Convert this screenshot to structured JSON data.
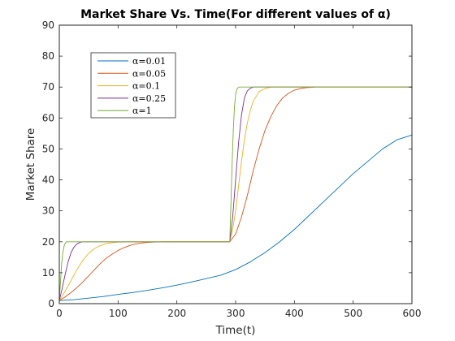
{
  "chart_data": {
    "type": "line",
    "title": "Market Share Vs. Time(For different values of α)",
    "xlabel": "Time(t)",
    "ylabel": "Market Share",
    "xlim": [
      0,
      600
    ],
    "ylim": [
      0,
      90
    ],
    "xticks": [
      0,
      100,
      200,
      300,
      400,
      500,
      600
    ],
    "yticks": [
      0,
      10,
      20,
      30,
      40,
      50,
      60,
      70,
      80,
      90
    ],
    "grid": false,
    "legend_position": "top-left",
    "series": [
      {
        "name": "α=0.01",
        "color": "#0072BD",
        "x": [
          0,
          25,
          50,
          75,
          100,
          125,
          150,
          175,
          200,
          225,
          250,
          275,
          300,
          325,
          350,
          375,
          400,
          425,
          450,
          475,
          500,
          525,
          550,
          575,
          600
        ],
        "y": [
          1,
          1.3,
          1.8,
          2.3,
          3,
          3.6,
          4.3,
          5.1,
          6,
          7,
          8.1,
          9.2,
          11,
          13.5,
          16.5,
          20,
          24,
          28.5,
          33,
          37.5,
          42,
          46,
          50,
          53,
          54.5
        ]
      },
      {
        "name": "α=0.05",
        "color": "#D95319",
        "x": [
          0,
          10,
          20,
          30,
          40,
          50,
          60,
          70,
          80,
          90,
          100,
          110,
          120,
          130,
          140,
          150,
          160,
          175,
          200,
          250,
          290,
          300,
          310,
          320,
          330,
          340,
          350,
          360,
          370,
          380,
          390,
          400,
          410,
          420,
          435
        ],
        "y": [
          1,
          2.2,
          3.6,
          5.2,
          7,
          9,
          11,
          13,
          14.7,
          16,
          17.2,
          18.1,
          18.8,
          19.3,
          19.6,
          19.8,
          19.9,
          20,
          20,
          20,
          20,
          22.5,
          28,
          35,
          43,
          50,
          56,
          60.5,
          64,
          66.5,
          68,
          69,
          69.5,
          69.8,
          70
        ]
      },
      {
        "name": "α=0.1",
        "color": "#EDB120",
        "x": [
          0,
          10,
          20,
          30,
          40,
          50,
          60,
          70,
          80,
          90,
          100,
          120,
          200,
          290,
          295,
          300,
          305,
          310,
          315,
          320,
          325,
          330,
          340,
          350,
          360,
          600
        ],
        "y": [
          1,
          4,
          7.5,
          11,
          14,
          16.3,
          17.8,
          18.8,
          19.4,
          19.7,
          19.9,
          20,
          20,
          20,
          24,
          30,
          38,
          46,
          53,
          58.5,
          62.5,
          65.5,
          68.5,
          69.5,
          70,
          70
        ]
      },
      {
        "name": "α=0.25",
        "color": "#7E2F8E",
        "x": [
          0,
          5,
          10,
          15,
          20,
          25,
          30,
          35,
          40,
          100,
          200,
          290,
          295,
          300,
          305,
          310,
          315,
          320,
          325,
          330,
          600
        ],
        "y": [
          1,
          5,
          9.5,
          13.5,
          16.5,
          18.3,
          19.3,
          19.8,
          20,
          20,
          20,
          20,
          28,
          40,
          52,
          61,
          66.5,
          68.8,
          69.6,
          70,
          70
        ]
      },
      {
        "name": "α=1",
        "color": "#77AC30",
        "x": [
          0,
          2,
          4,
          6,
          8,
          10,
          12,
          100,
          200,
          290,
          292,
          294,
          296,
          298,
          300,
          302,
          304,
          306,
          308,
          600
        ],
        "y": [
          1,
          7,
          13,
          16.5,
          18.5,
          19.5,
          20,
          20,
          20,
          20,
          32,
          45,
          56,
          63.5,
          67.5,
          69.2,
          69.8,
          70,
          70,
          70
        ]
      }
    ]
  }
}
